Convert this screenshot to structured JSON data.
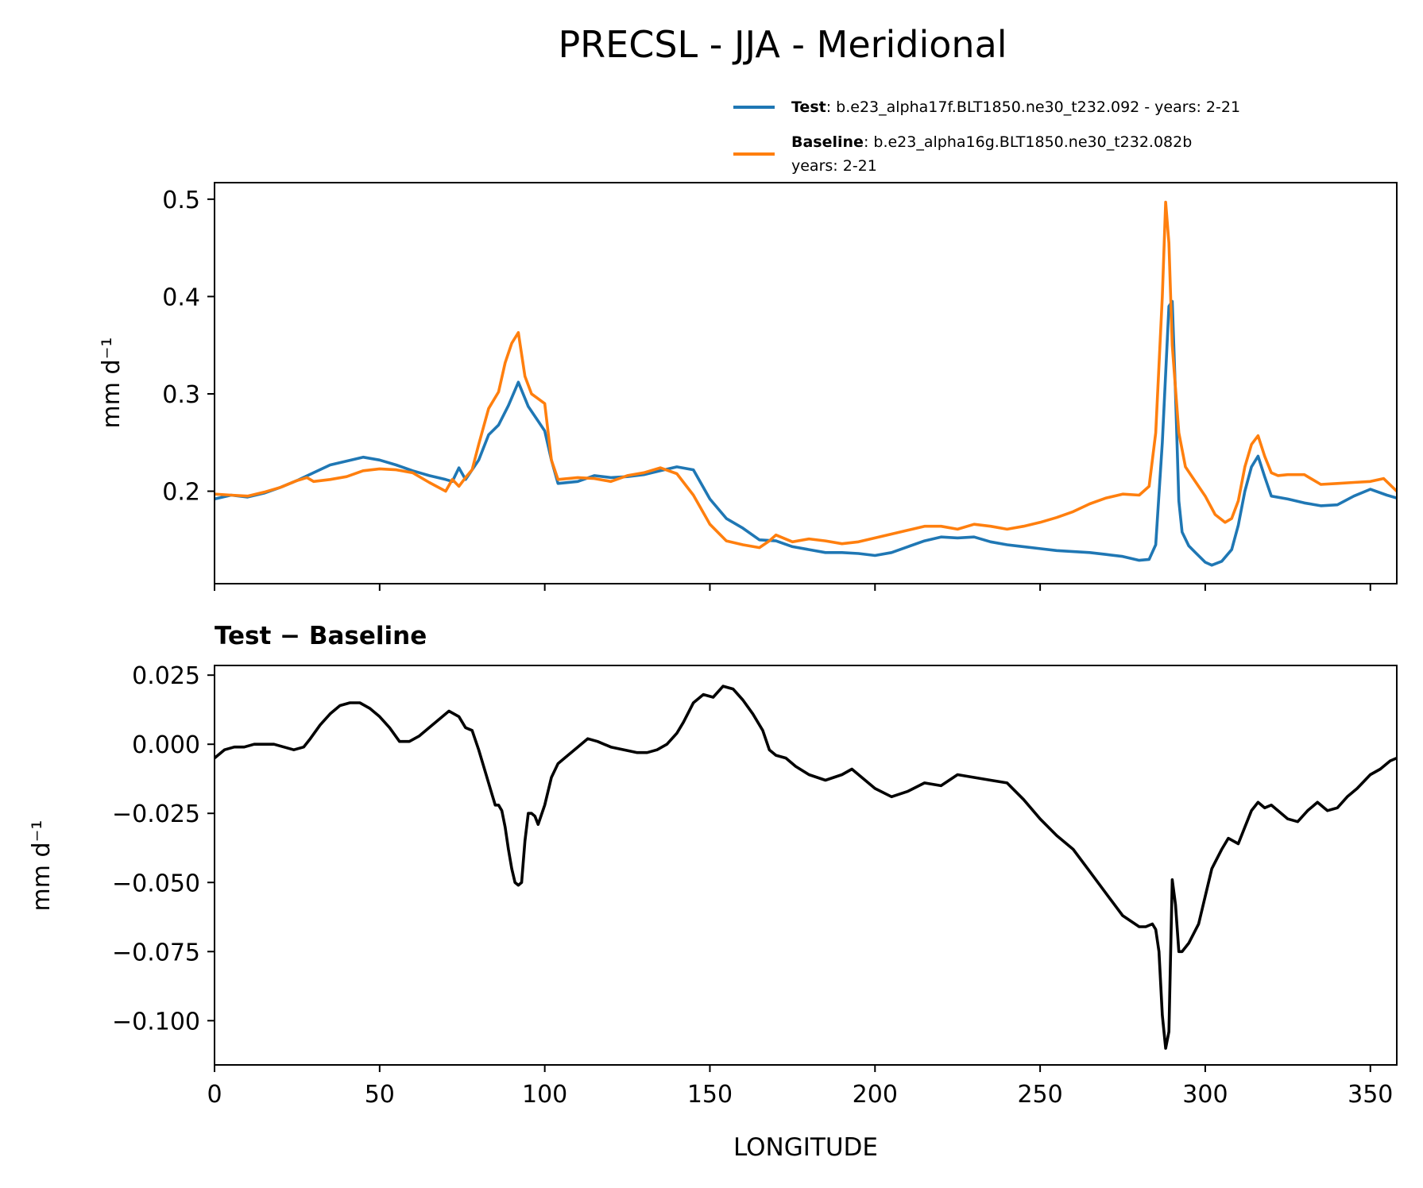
{
  "figure": {
    "title": "PRECSL - JJA - Meridional"
  },
  "legend": {
    "test": {
      "label": "Test",
      "text": ": b.e23_alpha17f.BLT1850.ne30_t232.092 - years: 2-21"
    },
    "baseline": {
      "label": "Baseline",
      "text": ": b.e23_alpha16g.BLT1850.ne30_t232.082b",
      "text2": "years: 2-21"
    }
  },
  "colors": {
    "test": "#1f77b4",
    "baseline": "#ff7f0e",
    "diff": "#000000"
  },
  "chart_data": [
    {
      "type": "line",
      "title": "",
      "xlabel": "",
      "ylabel": "mm d⁻¹",
      "xlim": [
        0,
        358
      ],
      "ylim": [
        0.105,
        0.517
      ],
      "yticks": [
        0.2,
        0.3,
        0.4,
        0.5
      ],
      "ytick_labels": [
        "0.2",
        "0.3",
        "0.4",
        "0.5"
      ],
      "xticks": [
        0,
        50,
        100,
        150,
        200,
        250,
        300,
        350
      ],
      "series": [
        {
          "name": "Test",
          "x": [
            0,
            5,
            10,
            15,
            20,
            25,
            30,
            35,
            40,
            45,
            50,
            55,
            60,
            65,
            70,
            72,
            74,
            76,
            78,
            80,
            83,
            86,
            89,
            92,
            95,
            98,
            100,
            102,
            104,
            110,
            115,
            120,
            125,
            130,
            135,
            140,
            145,
            150,
            155,
            160,
            165,
            170,
            175,
            180,
            185,
            190,
            195,
            200,
            205,
            210,
            215,
            220,
            225,
            230,
            235,
            240,
            245,
            250,
            255,
            260,
            265,
            270,
            275,
            280,
            283,
            285,
            287,
            289,
            290,
            291,
            292,
            293,
            295,
            297,
            300,
            302,
            305,
            308,
            310,
            312,
            314,
            316,
            318,
            320,
            325,
            330,
            335,
            340,
            345,
            350,
            355,
            358
          ],
          "y": [
            0.192,
            0.196,
            0.194,
            0.198,
            0.204,
            0.211,
            0.219,
            0.227,
            0.231,
            0.235,
            0.232,
            0.227,
            0.221,
            0.216,
            0.212,
            0.21,
            0.224,
            0.212,
            0.222,
            0.232,
            0.258,
            0.268,
            0.288,
            0.312,
            0.287,
            0.272,
            0.262,
            0.232,
            0.208,
            0.21,
            0.216,
            0.214,
            0.215,
            0.217,
            0.221,
            0.225,
            0.222,
            0.192,
            0.172,
            0.162,
            0.15,
            0.149,
            0.143,
            0.14,
            0.137,
            0.137,
            0.136,
            0.134,
            0.137,
            0.143,
            0.149,
            0.153,
            0.152,
            0.153,
            0.148,
            0.145,
            0.143,
            0.141,
            0.139,
            0.138,
            0.137,
            0.135,
            0.133,
            0.129,
            0.13,
            0.145,
            0.25,
            0.39,
            0.395,
            0.3,
            0.19,
            0.158,
            0.144,
            0.137,
            0.127,
            0.124,
            0.128,
            0.14,
            0.165,
            0.2,
            0.225,
            0.236,
            0.215,
            0.195,
            0.192,
            0.188,
            0.185,
            0.186,
            0.195,
            0.202,
            0.196,
            0.193
          ]
        },
        {
          "name": "Baseline",
          "x": [
            0,
            5,
            10,
            15,
            20,
            25,
            28,
            30,
            35,
            40,
            45,
            50,
            55,
            60,
            65,
            70,
            72,
            74,
            76,
            78,
            80,
            83,
            86,
            88,
            90,
            92,
            94,
            96,
            98,
            100,
            102,
            104,
            110,
            115,
            120,
            125,
            130,
            135,
            140,
            145,
            150,
            155,
            160,
            165,
            168,
            170,
            175,
            180,
            185,
            190,
            195,
            200,
            205,
            210,
            215,
            220,
            225,
            230,
            235,
            240,
            245,
            250,
            255,
            260,
            265,
            270,
            275,
            280,
            283,
            285,
            287,
            288,
            289,
            290,
            292,
            294,
            296,
            300,
            303,
            306,
            308,
            310,
            312,
            314,
            316,
            318,
            320,
            322,
            325,
            330,
            335,
            340,
            345,
            350,
            354,
            358
          ],
          "y": [
            0.197,
            0.196,
            0.195,
            0.199,
            0.204,
            0.211,
            0.214,
            0.21,
            0.212,
            0.215,
            0.221,
            0.223,
            0.222,
            0.219,
            0.209,
            0.2,
            0.212,
            0.205,
            0.214,
            0.222,
            0.248,
            0.285,
            0.302,
            0.332,
            0.352,
            0.363,
            0.318,
            0.3,
            0.295,
            0.29,
            0.232,
            0.212,
            0.214,
            0.213,
            0.21,
            0.216,
            0.219,
            0.224,
            0.218,
            0.196,
            0.166,
            0.149,
            0.145,
            0.142,
            0.149,
            0.155,
            0.148,
            0.151,
            0.149,
            0.146,
            0.148,
            0.152,
            0.156,
            0.16,
            0.164,
            0.164,
            0.161,
            0.166,
            0.164,
            0.161,
            0.164,
            0.168,
            0.173,
            0.179,
            0.187,
            0.193,
            0.197,
            0.196,
            0.205,
            0.26,
            0.4,
            0.497,
            0.455,
            0.35,
            0.26,
            0.225,
            0.215,
            0.195,
            0.176,
            0.168,
            0.172,
            0.19,
            0.225,
            0.248,
            0.257,
            0.236,
            0.219,
            0.216,
            0.217,
            0.217,
            0.207,
            0.208,
            0.209,
            0.21,
            0.213,
            0.2
          ]
        }
      ]
    },
    {
      "type": "line",
      "title": "Test − Baseline",
      "xlabel": "LONGITUDE",
      "ylabel": "mm d⁻¹",
      "xlim": [
        0,
        358
      ],
      "ylim": [
        -0.116,
        0.0285
      ],
      "yticks": [
        0.025,
        0.0,
        -0.025,
        -0.05,
        -0.075,
        -0.1
      ],
      "ytick_labels": [
        "0.025",
        "0.000",
        "−0.025",
        "−0.050",
        "−0.075",
        "−0.100"
      ],
      "xticks": [
        0,
        50,
        100,
        150,
        200,
        250,
        300,
        350
      ],
      "xtick_labels": [
        "0",
        "50",
        "100",
        "150",
        "200",
        "250",
        "300",
        "350"
      ],
      "series": [
        {
          "name": "Test − Baseline",
          "x": [
            0,
            3,
            6,
            9,
            12,
            15,
            18,
            21,
            24,
            27,
            29,
            32,
            35,
            38,
            41,
            44,
            47,
            50,
            53,
            56,
            59,
            62,
            65,
            68,
            71,
            74,
            76,
            78,
            80,
            82,
            84,
            85,
            86,
            87,
            88,
            89,
            90,
            91,
            92,
            93,
            94,
            95,
            96,
            97,
            98,
            100,
            102,
            104,
            106,
            110,
            113,
            116,
            120,
            124,
            128,
            131,
            134,
            137,
            140,
            142,
            145,
            148,
            151,
            154,
            157,
            160,
            163,
            166,
            168,
            170,
            173,
            176,
            180,
            185,
            190,
            193,
            196,
            200,
            205,
            210,
            215,
            220,
            225,
            230,
            235,
            240,
            245,
            250,
            255,
            260,
            265,
            270,
            275,
            280,
            282,
            284,
            285,
            286,
            287,
            288,
            289,
            290,
            291,
            292,
            293,
            295,
            298,
            300,
            302,
            305,
            307,
            310,
            312,
            314,
            316,
            318,
            320,
            322,
            325,
            328,
            331,
            334,
            337,
            340,
            343,
            346,
            350,
            353,
            356,
            358
          ],
          "y": [
            -0.005,
            -0.002,
            -0.001,
            -0.001,
            0.0,
            0.0,
            0.0,
            -0.001,
            -0.002,
            -0.001,
            0.002,
            0.007,
            0.011,
            0.014,
            0.015,
            0.015,
            0.013,
            0.01,
            0.006,
            0.001,
            0.001,
            0.003,
            0.006,
            0.009,
            0.012,
            0.01,
            0.006,
            0.005,
            -0.002,
            -0.01,
            -0.018,
            -0.022,
            -0.022,
            -0.024,
            -0.03,
            -0.038,
            -0.045,
            -0.05,
            -0.051,
            -0.05,
            -0.035,
            -0.025,
            -0.025,
            -0.026,
            -0.029,
            -0.022,
            -0.012,
            -0.007,
            -0.005,
            -0.001,
            0.002,
            0.001,
            -0.001,
            -0.002,
            -0.003,
            -0.003,
            -0.002,
            0.0,
            0.004,
            0.008,
            0.015,
            0.018,
            0.017,
            0.021,
            0.02,
            0.016,
            0.011,
            0.005,
            -0.002,
            -0.004,
            -0.005,
            -0.008,
            -0.011,
            -0.013,
            -0.011,
            -0.009,
            -0.012,
            -0.016,
            -0.019,
            -0.017,
            -0.014,
            -0.015,
            -0.011,
            -0.012,
            -0.013,
            -0.014,
            -0.02,
            -0.027,
            -0.033,
            -0.038,
            -0.046,
            -0.054,
            -0.062,
            -0.066,
            -0.066,
            -0.065,
            -0.067,
            -0.075,
            -0.098,
            -0.11,
            -0.104,
            -0.049,
            -0.058,
            -0.075,
            -0.075,
            -0.072,
            -0.065,
            -0.055,
            -0.045,
            -0.038,
            -0.034,
            -0.036,
            -0.03,
            -0.024,
            -0.021,
            -0.023,
            -0.022,
            -0.024,
            -0.027,
            -0.028,
            -0.024,
            -0.021,
            -0.024,
            -0.023,
            -0.019,
            -0.016,
            -0.011,
            -0.009,
            -0.006,
            -0.005
          ]
        }
      ]
    }
  ]
}
